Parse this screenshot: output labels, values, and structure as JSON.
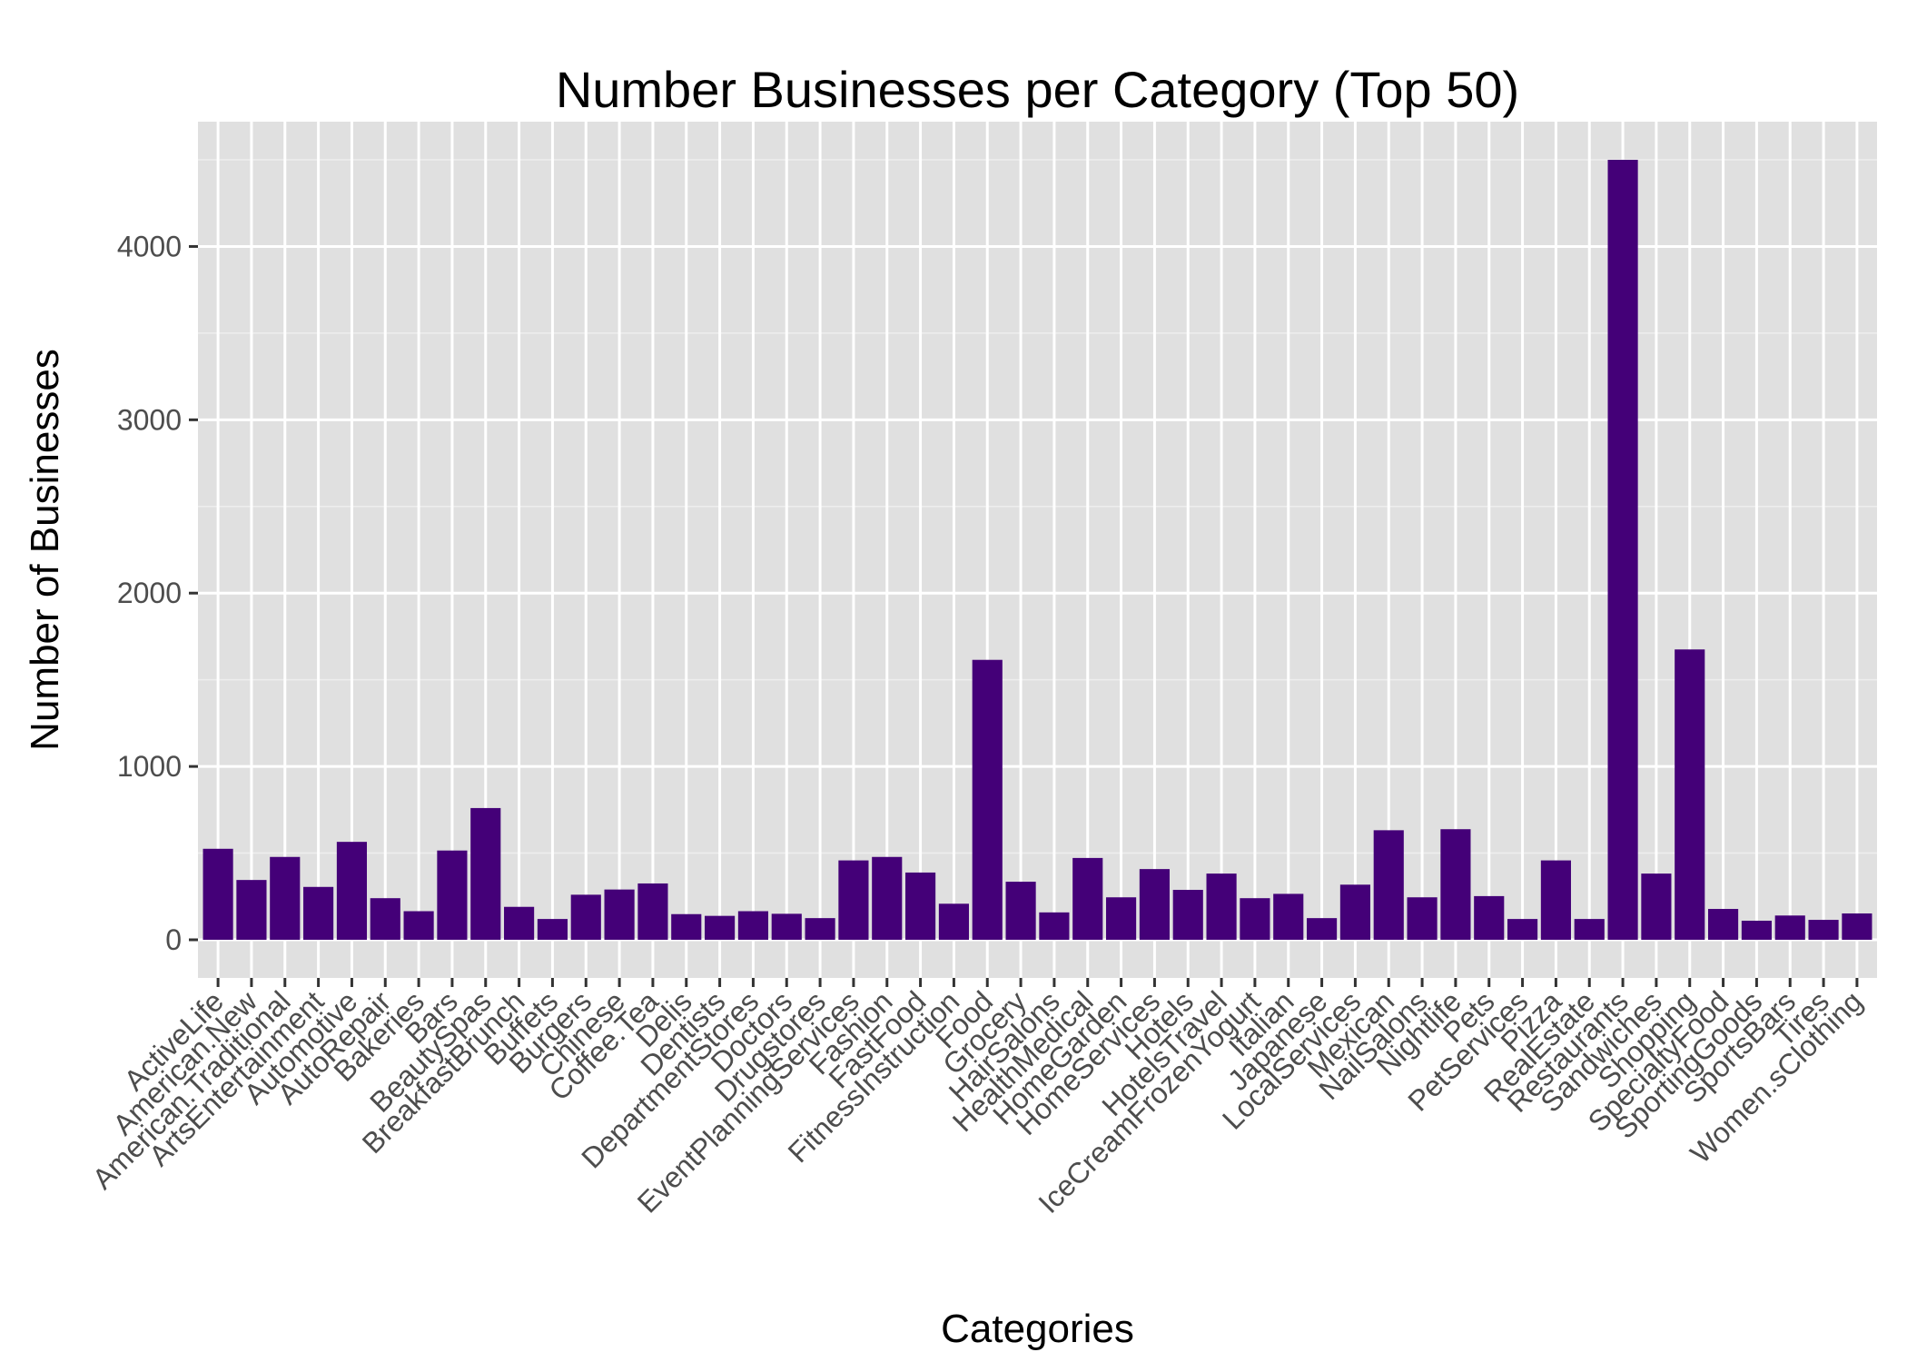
{
  "chart_data": {
    "type": "bar",
    "title": "Number Businesses per Category (Top 50)",
    "xlabel": "Categories",
    "ylabel": "Number of Businesses",
    "ylim": [
      -220,
      4720
    ],
    "yticks": [
      0,
      1000,
      2000,
      3000,
      4000
    ],
    "grid": true,
    "legend": "none",
    "colors": {
      "bar": "#440078",
      "panel": "#e0e0e0",
      "grid_major": "#ffffff",
      "grid_minor": "#eeeeee",
      "tick_text": "#4d4d4d",
      "text": "#000000"
    },
    "categories": [
      "ActiveLife",
      "American.New",
      "American.Traditional",
      "ArtsEntertainment",
      "Automotive",
      "AutoRepair",
      "Bakeries",
      "Bars",
      "BeautySpas",
      "BreakfastBrunch",
      "Buffets",
      "Burgers",
      "Chinese",
      "Coffee.Tea",
      "Delis",
      "Dentists",
      "DepartmentStores",
      "Doctors",
      "Drugstores",
      "EventPlanningServices",
      "Fashion",
      "FastFood",
      "FitnessInstruction",
      "Food",
      "Grocery",
      "HairSalons",
      "HealthMedical",
      "HomeGarden",
      "HomeServices",
      "Hotels",
      "HotelsTravel",
      "IceCreamFrozenYogurt",
      "Italian",
      "Japanese",
      "LocalServices",
      "Mexican",
      "NailSalons",
      "Nightlife",
      "Pets",
      "PetServices",
      "Pizza",
      "RealEstate",
      "Restaurants",
      "Sandwiches",
      "Shopping",
      "SpecialtyFood",
      "SportingGoods",
      "SportsBars",
      "Tires",
      "Women.sClothing"
    ],
    "values": [
      525,
      345,
      478,
      305,
      565,
      240,
      165,
      515,
      760,
      190,
      120,
      260,
      290,
      325,
      148,
      138,
      165,
      150,
      125,
      458,
      478,
      388,
      208,
      1615,
      335,
      158,
      472,
      245,
      408,
      288,
      382,
      240,
      265,
      125,
      318,
      632,
      245,
      638,
      252,
      120,
      458,
      120,
      4500,
      382,
      1675,
      178,
      110,
      140,
      115,
      152
    ]
  }
}
